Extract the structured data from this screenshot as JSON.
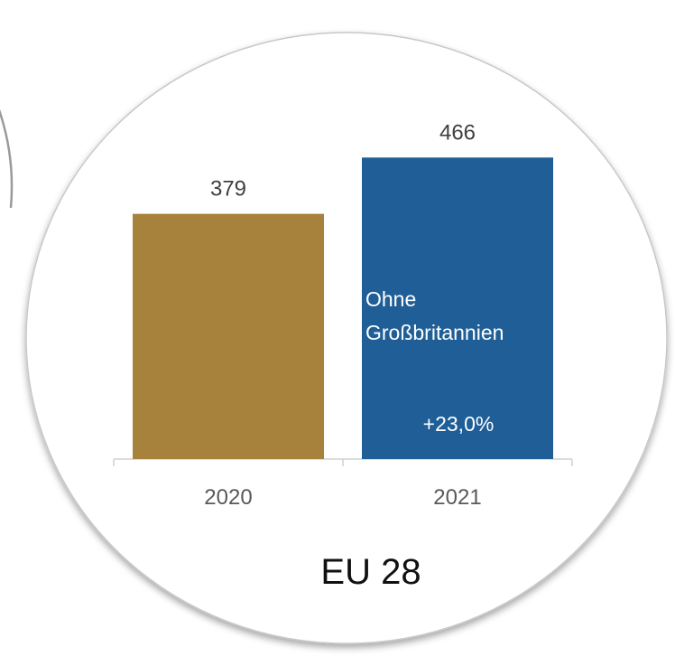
{
  "chart_data": {
    "type": "bar",
    "categories": [
      "2020",
      "2021"
    ],
    "values": [
      379,
      466
    ],
    "data_labels": [
      "379",
      "466"
    ],
    "colors": [
      "#A6823C",
      "#1F5E96"
    ],
    "ylim": [
      0,
      500
    ],
    "grid": false,
    "annotation_lines": [
      "Ohne",
      "Großbritannien"
    ],
    "change_label": "+23,0%",
    "region_label": "EU 28"
  }
}
